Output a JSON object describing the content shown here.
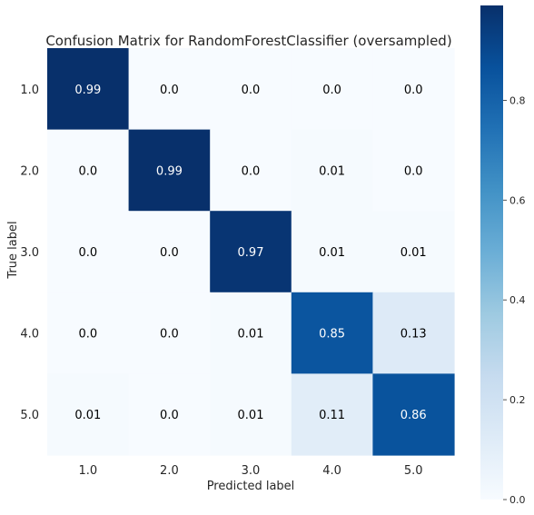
{
  "chart_data": {
    "type": "heatmap",
    "title": "Confusion Matrix for RandomForestClassifier (oversampled)",
    "xlabel": "Predicted label",
    "ylabel": "True label",
    "x_categories": [
      "1.0",
      "2.0",
      "3.0",
      "4.0",
      "5.0"
    ],
    "y_categories": [
      "1.0",
      "2.0",
      "3.0",
      "4.0",
      "5.0"
    ],
    "values": [
      [
        0.99,
        0.0,
        0.0,
        0.0,
        0.0
      ],
      [
        0.0,
        0.99,
        0.0,
        0.01,
        0.0
      ],
      [
        0.0,
        0.0,
        0.97,
        0.01,
        0.01
      ],
      [
        0.0,
        0.0,
        0.01,
        0.85,
        0.13
      ],
      [
        0.01,
        0.0,
        0.01,
        0.11,
        0.86
      ]
    ],
    "cell_labels": [
      [
        "0.99",
        "0.0",
        "0.0",
        "0.0",
        "0.0"
      ],
      [
        "0.0",
        "0.99",
        "0.0",
        "0.01",
        "0.0"
      ],
      [
        "0.0",
        "0.0",
        "0.97",
        "0.01",
        "0.01"
      ],
      [
        "0.0",
        "0.0",
        "0.01",
        "0.85",
        "0.13"
      ],
      [
        "0.01",
        "0.0",
        "0.01",
        "0.11",
        "0.86"
      ]
    ],
    "colormap": "Blues",
    "color_range": [
      0,
      0.99
    ],
    "colorbar_ticks": [
      "0.0",
      "0.2",
      "0.4",
      "0.6",
      "0.8"
    ],
    "colorbar_tick_values": [
      0.0,
      0.2,
      0.4,
      0.6,
      0.8
    ],
    "grid": false
  }
}
